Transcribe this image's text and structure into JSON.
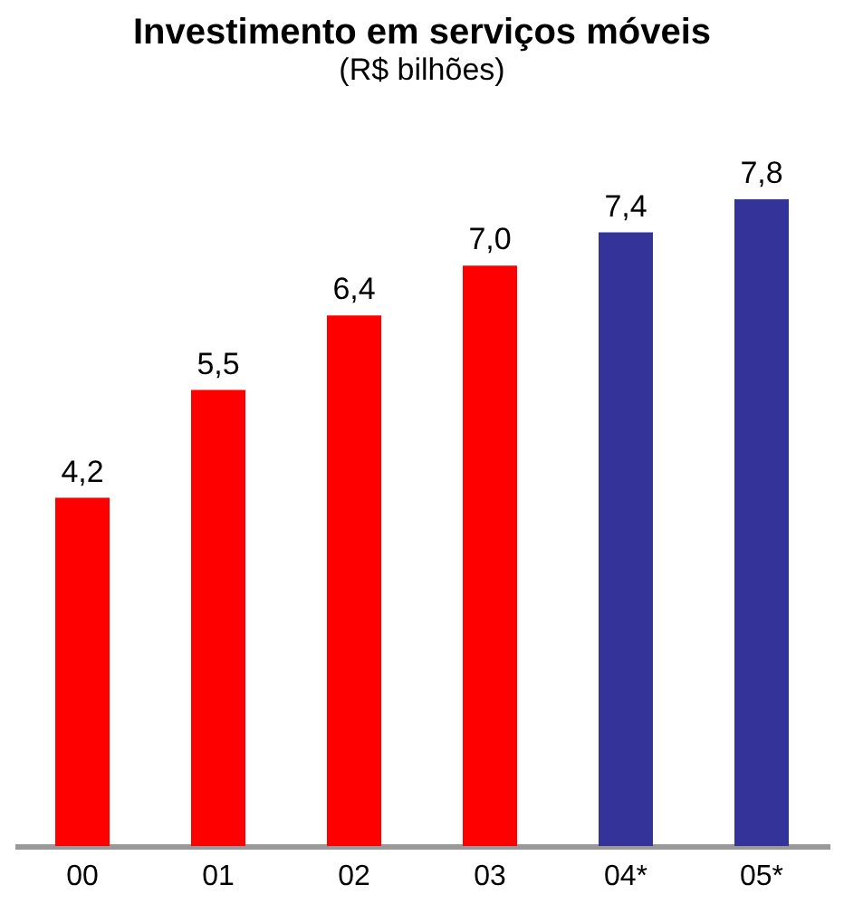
{
  "chart_data": {
    "type": "bar",
    "title": "Investimento em serviços móveis",
    "subtitle": "(R$ bilhões)",
    "categories": [
      "00",
      "01",
      "02",
      "03",
      "04*",
      "05*"
    ],
    "values": [
      4.2,
      5.5,
      6.4,
      7.0,
      7.4,
      7.8
    ],
    "value_labels": [
      "4,2",
      "5,5",
      "6,4",
      "7,0",
      "7,4",
      "7,8"
    ],
    "colors": [
      "#ff0000",
      "#ff0000",
      "#ff0000",
      "#ff0000",
      "#333399",
      "#333399"
    ]
  }
}
